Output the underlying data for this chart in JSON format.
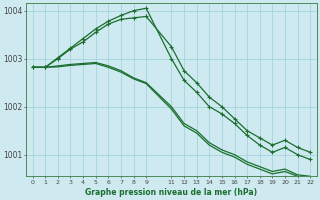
{
  "xlabel": "Graphe pression niveau de la mer (hPa)",
  "bg_color": "#ceeaf0",
  "grid_color": "#a8d8e0",
  "line_color": "#1a6e2e",
  "ylim": [
    1000.55,
    1004.15
  ],
  "yticks": [
    1001,
    1002,
    1003,
    1004
  ],
  "x_vals": [
    0,
    1,
    2,
    3,
    4,
    5,
    6,
    7,
    8,
    9,
    11,
    12,
    13,
    14,
    15,
    16,
    17,
    18,
    19,
    20,
    21,
    22
  ],
  "series": [
    {
      "y": [
        1002.82,
        1002.82,
        1003.0,
        1003.2,
        1003.35,
        1003.55,
        1003.72,
        1003.82,
        1003.85,
        1003.88,
        1003.25,
        1002.75,
        1002.5,
        1002.2,
        1002.0,
        1001.75,
        1001.5,
        1001.35,
        1001.2,
        1001.3,
        1001.15,
        1001.05
      ],
      "marker": true
    },
    {
      "y": [
        1002.82,
        1002.82,
        1003.02,
        1003.22,
        1003.42,
        1003.62,
        1003.78,
        1003.9,
        1004.0,
        1004.05,
        1003.0,
        1002.55,
        1002.3,
        1002.0,
        1001.85,
        1001.65,
        1001.4,
        1001.2,
        1001.05,
        1001.15,
        1001.0,
        1000.9
      ],
      "marker": true
    },
    {
      "y": [
        1002.82,
        1002.82,
        1002.85,
        1002.88,
        1002.9,
        1002.92,
        1002.85,
        1002.75,
        1002.6,
        1002.5,
        1002.0,
        1001.65,
        1001.5,
        1001.25,
        1001.1,
        1001.0,
        1000.85,
        1000.75,
        1000.65,
        1000.7,
        1000.58,
        1000.55
      ],
      "marker": false
    },
    {
      "y": [
        1002.82,
        1002.82,
        1002.83,
        1002.86,
        1002.88,
        1002.9,
        1002.82,
        1002.72,
        1002.58,
        1002.48,
        1001.95,
        1001.6,
        1001.45,
        1001.2,
        1001.05,
        1000.95,
        1000.8,
        1000.7,
        1000.6,
        1000.65,
        1000.55,
        1000.52
      ],
      "marker": false
    }
  ]
}
